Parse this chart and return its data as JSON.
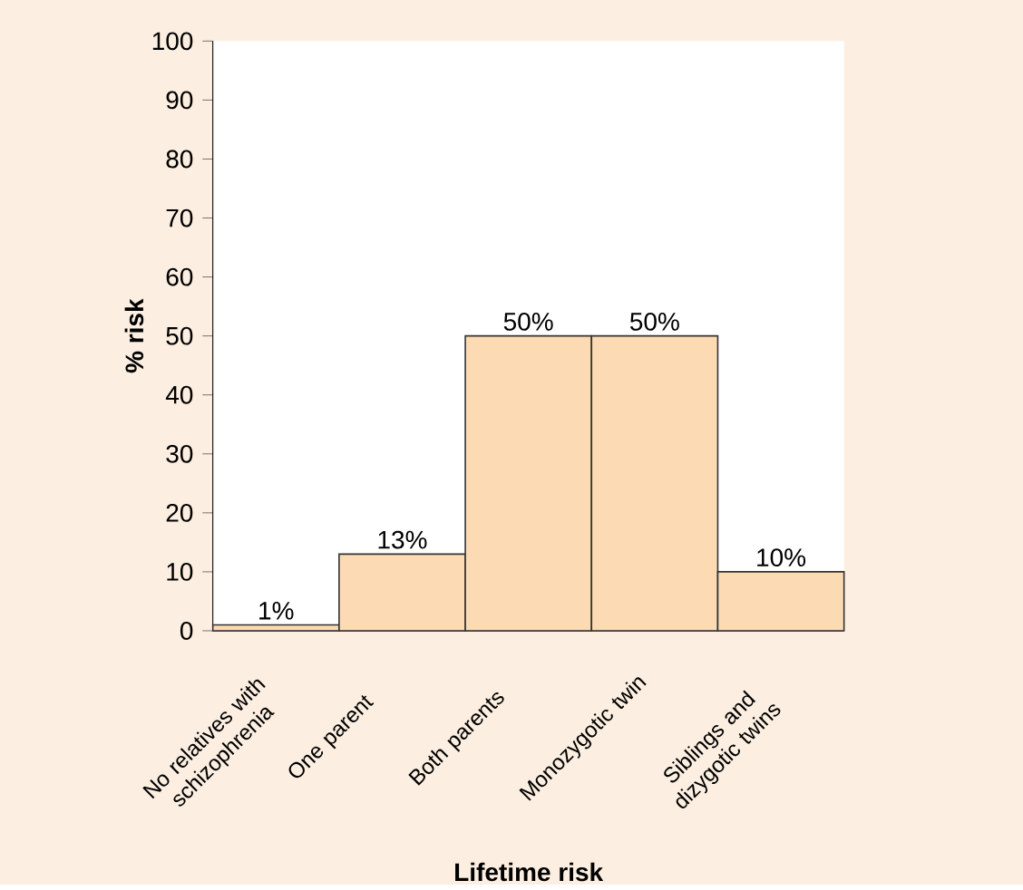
{
  "chart_data": {
    "type": "bar",
    "categories": [
      "No relatives with schizophrenia",
      "One parent",
      "Both parents",
      "Monozygotic twin",
      "Siblings and dizygotic twins"
    ],
    "values": [
      1,
      13,
      50,
      50,
      10
    ],
    "value_labels": [
      "1%",
      "13%",
      "50%",
      "50%",
      "10%"
    ],
    "color": "#fcdab3",
    "xlabel": "Lifetime risk",
    "ylabel": "% risk",
    "ylim": [
      0,
      100
    ],
    "yticks": [
      0,
      10,
      20,
      30,
      40,
      50,
      60,
      70,
      80,
      90,
      100
    ],
    "grid": false
  }
}
